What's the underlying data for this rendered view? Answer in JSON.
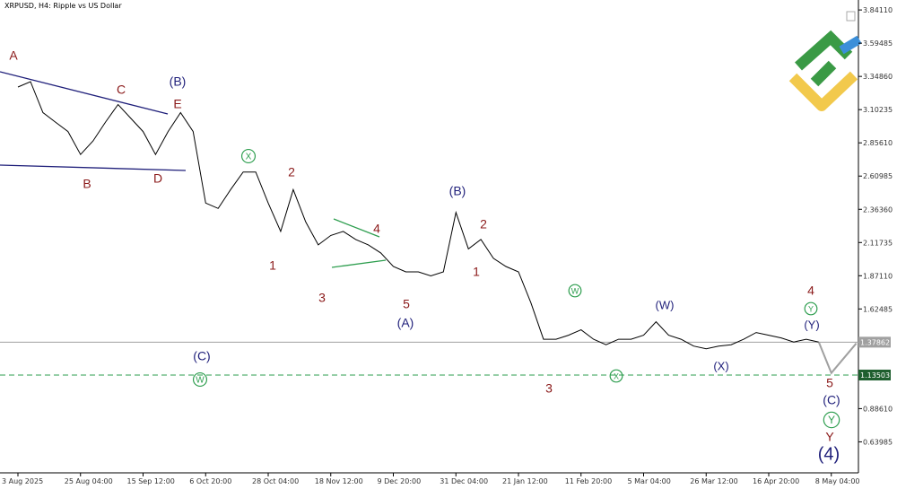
{
  "chart_data": {
    "type": "line",
    "title": "XRPUSD, H4:  Ripple vs US Dollar",
    "categories": [
      "3 Aug 2025",
      null,
      null,
      null,
      null,
      "25 Aug 04:00",
      null,
      null,
      null,
      null,
      "15 Sep 12:00",
      null,
      null,
      null,
      null,
      "6 Oct 20:00",
      null,
      null,
      null,
      null,
      "28 Oct 04:00",
      null,
      null,
      null,
      null,
      "18 Nov 12:00",
      null,
      null,
      null,
      null,
      "9 Dec 20:00",
      null,
      null,
      null,
      null,
      "31 Dec 04:00",
      null,
      null,
      null,
      null,
      "21 Jan 12:00",
      null,
      null,
      null,
      null,
      "11 Feb 20:00",
      null,
      null,
      null,
      null,
      "5 Mar 04:00",
      null,
      null,
      null,
      null,
      "26 Mar 12:00",
      null,
      null,
      null,
      null,
      "16 Apr 20:00",
      null,
      null,
      null,
      null,
      "8 May 04:00",
      null,
      null
    ],
    "series": [
      {
        "color": "#000000",
        "values": [
          3.27,
          3.31,
          3.08,
          3.01,
          2.94,
          2.77,
          2.87,
          3.01,
          3.14,
          3.04,
          2.94,
          2.77,
          2.94,
          3.08,
          2.94,
          2.41,
          2.37,
          2.51,
          2.64,
          2.64,
          2.41,
          2.2,
          2.51,
          2.27,
          2.1,
          2.17,
          2.2,
          2.14,
          2.1,
          2.04,
          1.94,
          1.9,
          1.9,
          1.87,
          1.9,
          2.34,
          2.07,
          2.14,
          2.0,
          1.94,
          1.9,
          1.67,
          1.4,
          1.4,
          1.43,
          1.47,
          1.4,
          1.36,
          1.4,
          1.4,
          1.43,
          1.53,
          1.43,
          1.4,
          1.35,
          1.33,
          1.35,
          1.36,
          1.4,
          1.45,
          1.43,
          1.41,
          1.38,
          1.4,
          1.38,
          null,
          null,
          null
        ]
      },
      {
        "color": "#a0a0a0",
        "values": [
          null,
          null,
          null,
          null,
          null,
          null,
          null,
          null,
          null,
          null,
          null,
          null,
          null,
          null,
          null,
          null,
          null,
          null,
          null,
          null,
          null,
          null,
          null,
          null,
          null,
          null,
          null,
          null,
          null,
          null,
          null,
          null,
          null,
          null,
          null,
          null,
          null,
          null,
          null,
          null,
          null,
          null,
          null,
          null,
          null,
          null,
          null,
          null,
          null,
          null,
          null,
          null,
          null,
          null,
          null,
          null,
          null,
          null,
          null,
          null,
          null,
          null,
          null,
          null,
          1.38,
          1.15,
          1.26,
          1.37
        ]
      }
    ],
    "ylim": [
      0.41,
      3.915
    ],
    "yticks": [
      {
        "value": 3.8411,
        "label": "3.84110"
      },
      {
        "value": 3.59485,
        "label": "3.59485"
      },
      {
        "value": 3.3486,
        "label": "3.34860"
      },
      {
        "value": 3.10235,
        "label": "3.10235"
      },
      {
        "value": 2.8561,
        "label": "2.85610"
      },
      {
        "value": 2.60985,
        "label": "2.60985"
      },
      {
        "value": 2.3636,
        "label": "2.36360"
      },
      {
        "value": 2.11735,
        "label": "2.11735"
      },
      {
        "value": 1.8711,
        "label": "1.87110"
      },
      {
        "value": 1.62485,
        "label": "1.62485"
      },
      {
        "value": 0.8861,
        "label": "0.88610"
      },
      {
        "value": 0.63985,
        "label": "0.63985"
      }
    ],
    "price_lines": [
      {
        "value": 1.37862,
        "color": "#a0a0a0",
        "dashed": false
      },
      {
        "value": 1.13503,
        "color": "#2e9e4f",
        "dashed": true
      }
    ],
    "annotations": [
      {
        "text": "A",
        "color": "#8b1a1a"
      },
      {
        "text": "C",
        "color": "#8b1a1a"
      },
      {
        "text": "(B)",
        "color": "#1f1f7a"
      },
      {
        "text": "E",
        "color": "#8b1a1a"
      },
      {
        "text": "B",
        "color": "#8b1a1a"
      },
      {
        "text": "D",
        "color": "#8b1a1a"
      },
      {
        "text": "X",
        "color": "#2e9e4f",
        "circled": true
      },
      {
        "text": "2",
        "color": "#8b1a1a"
      },
      {
        "text": "1",
        "color": "#8b1a1a"
      },
      {
        "text": "3",
        "color": "#8b1a1a"
      },
      {
        "text": "4",
        "color": "#8b1a1a"
      },
      {
        "text": "5",
        "color": "#8b1a1a"
      },
      {
        "text": "(A)",
        "color": "#1f1f7a"
      },
      {
        "text": "(C)",
        "color": "#1f1f7a"
      },
      {
        "text": "W",
        "color": "#2e9e4f",
        "circled": true
      },
      {
        "text": "(B)",
        "color": "#1f1f7a"
      },
      {
        "text": "2",
        "color": "#8b1a1a"
      },
      {
        "text": "1",
        "color": "#8b1a1a"
      },
      {
        "text": "3",
        "color": "#8b1a1a"
      },
      {
        "text": "W",
        "color": "#2e9e4f",
        "circled": true
      },
      {
        "text": "X",
        "color": "#2e9e4f",
        "circled": true
      },
      {
        "text": "(W)",
        "color": "#1f1f7a"
      },
      {
        "text": "(X)",
        "color": "#1f1f7a"
      },
      {
        "text": "4",
        "color": "#8b1a1a"
      },
      {
        "text": "Y",
        "color": "#2e9e4f",
        "circled": true
      },
      {
        "text": "(Y)",
        "color": "#1f1f7a"
      },
      {
        "text": "5",
        "color": "#8b1a1a"
      },
      {
        "text": "(C)",
        "color": "#1f1f7a"
      },
      {
        "text": "Y",
        "color": "#2e9e4f",
        "circled": true
      },
      {
        "text": "Y",
        "color": "#8b1a1a"
      },
      {
        "text": "(4)",
        "color": "#1f1f7a"
      }
    ]
  }
}
